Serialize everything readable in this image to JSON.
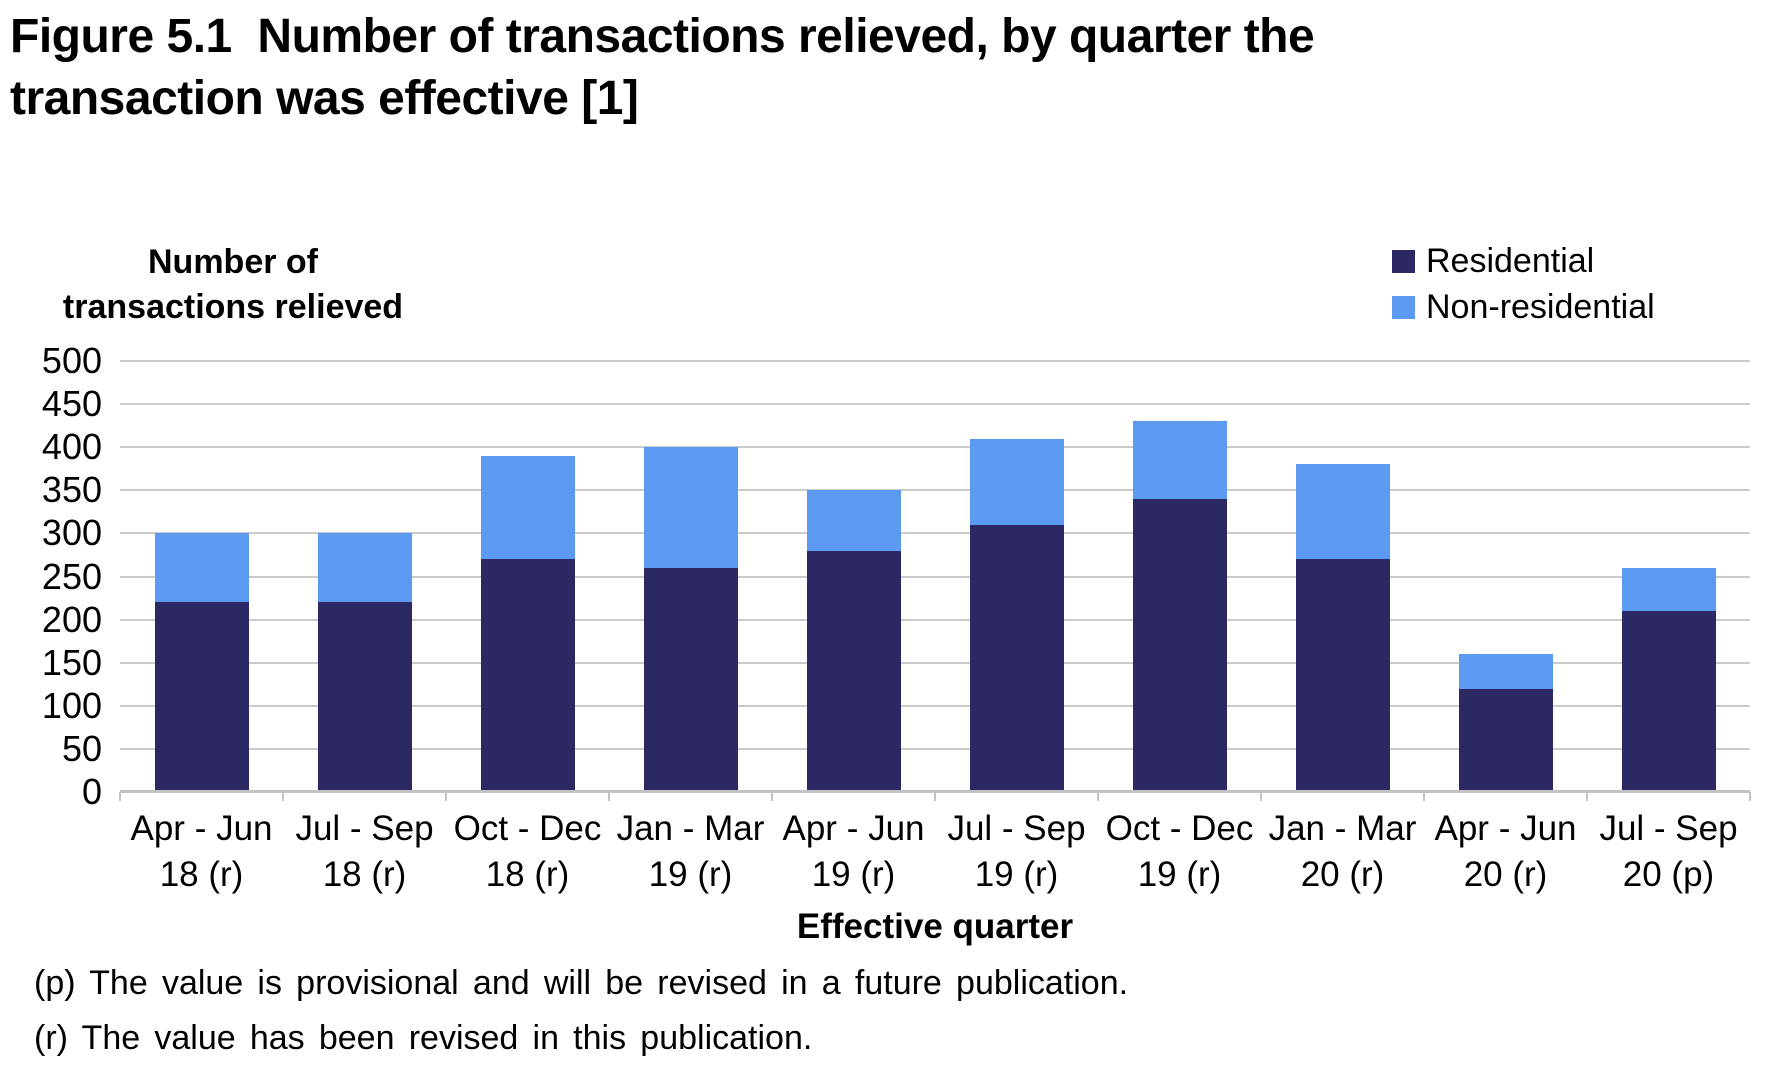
{
  "title": "Figure 5.1  Number of transactions relieved, by quarter the\ntransaction was effective [1]",
  "chart": {
    "y_axis_title": "Number of\ntransactions relieved",
    "x_axis_title": "Effective quarter",
    "footnotes": [
      "(p) The value is provisional and will be revised in a future publication.",
      "(r) The value has been revised in this publication."
    ]
  },
  "colors": {
    "residential": "#2B2864",
    "non_residential": "#5C9AF1",
    "gridline": "#CBCBCB",
    "axis_line": "#C2C2C2",
    "text": "#000000"
  },
  "chart_data": {
    "type": "bar",
    "stacked": true,
    "title": "Figure 5.1 Number of transactions relieved, by quarter the transaction was effective [1]",
    "xlabel": "Effective quarter",
    "ylabel": "Number of transactions relieved",
    "ylim": [
      0,
      500
    ],
    "ytick_step": 50,
    "grid": true,
    "legend_position": "top-right",
    "categories": [
      "Apr - Jun\n18 (r)",
      "Jul - Sep\n18 (r)",
      "Oct - Dec\n18 (r)",
      "Jan - Mar\n19 (r)",
      "Apr - Jun\n19 (r)",
      "Jul - Sep\n19 (r)",
      "Oct - Dec\n19 (r)",
      "Jan - Mar\n20 (r)",
      "Apr - Jun\n20 (r)",
      "Jul - Sep\n20 (p)"
    ],
    "series": [
      {
        "name": "Residential",
        "color": "#2B2864",
        "values": [
          220,
          220,
          270,
          260,
          280,
          310,
          340,
          270,
          120,
          210
        ]
      },
      {
        "name": "Non-residential",
        "color": "#5C9AF1",
        "values": [
          80,
          80,
          120,
          140,
          70,
          100,
          90,
          110,
          40,
          50
        ]
      }
    ],
    "totals": [
      300,
      300,
      390,
      400,
      350,
      410,
      430,
      380,
      160,
      260
    ]
  }
}
